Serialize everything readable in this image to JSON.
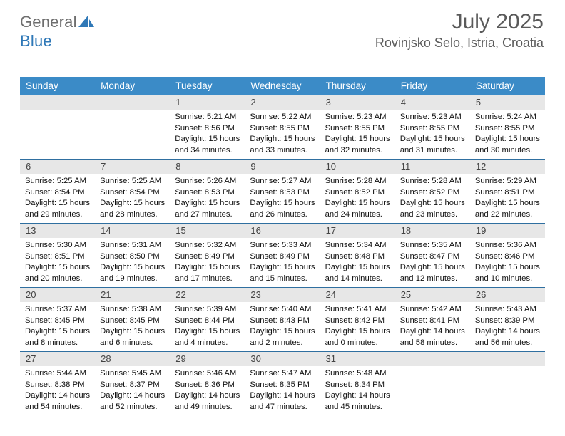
{
  "brand": {
    "part1": "General",
    "part2": "Blue"
  },
  "title": "July 2025",
  "location": "Rovinjsko Selo, Istria, Croatia",
  "headers": [
    "Sunday",
    "Monday",
    "Tuesday",
    "Wednesday",
    "Thursday",
    "Friday",
    "Saturday"
  ],
  "colors": {
    "header_bg": "#3b8bc7",
    "header_fg": "#ffffff",
    "daynum_bg": "#e7e7e7",
    "daynum_border": "#2f6fa0",
    "title_color": "#5a5a5a",
    "logo_gray": "#6e6e6e",
    "logo_blue": "#2f78b7"
  },
  "weeks": [
    [
      {
        "n": "",
        "lines": []
      },
      {
        "n": "",
        "lines": []
      },
      {
        "n": "1",
        "lines": [
          "Sunrise: 5:21 AM",
          "Sunset: 8:56 PM",
          "Daylight: 15 hours",
          "and 34 minutes."
        ]
      },
      {
        "n": "2",
        "lines": [
          "Sunrise: 5:22 AM",
          "Sunset: 8:55 PM",
          "Daylight: 15 hours",
          "and 33 minutes."
        ]
      },
      {
        "n": "3",
        "lines": [
          "Sunrise: 5:23 AM",
          "Sunset: 8:55 PM",
          "Daylight: 15 hours",
          "and 32 minutes."
        ]
      },
      {
        "n": "4",
        "lines": [
          "Sunrise: 5:23 AM",
          "Sunset: 8:55 PM",
          "Daylight: 15 hours",
          "and 31 minutes."
        ]
      },
      {
        "n": "5",
        "lines": [
          "Sunrise: 5:24 AM",
          "Sunset: 8:55 PM",
          "Daylight: 15 hours",
          "and 30 minutes."
        ]
      }
    ],
    [
      {
        "n": "6",
        "lines": [
          "Sunrise: 5:25 AM",
          "Sunset: 8:54 PM",
          "Daylight: 15 hours",
          "and 29 minutes."
        ]
      },
      {
        "n": "7",
        "lines": [
          "Sunrise: 5:25 AM",
          "Sunset: 8:54 PM",
          "Daylight: 15 hours",
          "and 28 minutes."
        ]
      },
      {
        "n": "8",
        "lines": [
          "Sunrise: 5:26 AM",
          "Sunset: 8:53 PM",
          "Daylight: 15 hours",
          "and 27 minutes."
        ]
      },
      {
        "n": "9",
        "lines": [
          "Sunrise: 5:27 AM",
          "Sunset: 8:53 PM",
          "Daylight: 15 hours",
          "and 26 minutes."
        ]
      },
      {
        "n": "10",
        "lines": [
          "Sunrise: 5:28 AM",
          "Sunset: 8:52 PM",
          "Daylight: 15 hours",
          "and 24 minutes."
        ]
      },
      {
        "n": "11",
        "lines": [
          "Sunrise: 5:28 AM",
          "Sunset: 8:52 PM",
          "Daylight: 15 hours",
          "and 23 minutes."
        ]
      },
      {
        "n": "12",
        "lines": [
          "Sunrise: 5:29 AM",
          "Sunset: 8:51 PM",
          "Daylight: 15 hours",
          "and 22 minutes."
        ]
      }
    ],
    [
      {
        "n": "13",
        "lines": [
          "Sunrise: 5:30 AM",
          "Sunset: 8:51 PM",
          "Daylight: 15 hours",
          "and 20 minutes."
        ]
      },
      {
        "n": "14",
        "lines": [
          "Sunrise: 5:31 AM",
          "Sunset: 8:50 PM",
          "Daylight: 15 hours",
          "and 19 minutes."
        ]
      },
      {
        "n": "15",
        "lines": [
          "Sunrise: 5:32 AM",
          "Sunset: 8:49 PM",
          "Daylight: 15 hours",
          "and 17 minutes."
        ]
      },
      {
        "n": "16",
        "lines": [
          "Sunrise: 5:33 AM",
          "Sunset: 8:49 PM",
          "Daylight: 15 hours",
          "and 15 minutes."
        ]
      },
      {
        "n": "17",
        "lines": [
          "Sunrise: 5:34 AM",
          "Sunset: 8:48 PM",
          "Daylight: 15 hours",
          "and 14 minutes."
        ]
      },
      {
        "n": "18",
        "lines": [
          "Sunrise: 5:35 AM",
          "Sunset: 8:47 PM",
          "Daylight: 15 hours",
          "and 12 minutes."
        ]
      },
      {
        "n": "19",
        "lines": [
          "Sunrise: 5:36 AM",
          "Sunset: 8:46 PM",
          "Daylight: 15 hours",
          "and 10 minutes."
        ]
      }
    ],
    [
      {
        "n": "20",
        "lines": [
          "Sunrise: 5:37 AM",
          "Sunset: 8:45 PM",
          "Daylight: 15 hours",
          "and 8 minutes."
        ]
      },
      {
        "n": "21",
        "lines": [
          "Sunrise: 5:38 AM",
          "Sunset: 8:45 PM",
          "Daylight: 15 hours",
          "and 6 minutes."
        ]
      },
      {
        "n": "22",
        "lines": [
          "Sunrise: 5:39 AM",
          "Sunset: 8:44 PM",
          "Daylight: 15 hours",
          "and 4 minutes."
        ]
      },
      {
        "n": "23",
        "lines": [
          "Sunrise: 5:40 AM",
          "Sunset: 8:43 PM",
          "Daylight: 15 hours",
          "and 2 minutes."
        ]
      },
      {
        "n": "24",
        "lines": [
          "Sunrise: 5:41 AM",
          "Sunset: 8:42 PM",
          "Daylight: 15 hours",
          "and 0 minutes."
        ]
      },
      {
        "n": "25",
        "lines": [
          "Sunrise: 5:42 AM",
          "Sunset: 8:41 PM",
          "Daylight: 14 hours",
          "and 58 minutes."
        ]
      },
      {
        "n": "26",
        "lines": [
          "Sunrise: 5:43 AM",
          "Sunset: 8:39 PM",
          "Daylight: 14 hours",
          "and 56 minutes."
        ]
      }
    ],
    [
      {
        "n": "27",
        "lines": [
          "Sunrise: 5:44 AM",
          "Sunset: 8:38 PM",
          "Daylight: 14 hours",
          "and 54 minutes."
        ]
      },
      {
        "n": "28",
        "lines": [
          "Sunrise: 5:45 AM",
          "Sunset: 8:37 PM",
          "Daylight: 14 hours",
          "and 52 minutes."
        ]
      },
      {
        "n": "29",
        "lines": [
          "Sunrise: 5:46 AM",
          "Sunset: 8:36 PM",
          "Daylight: 14 hours",
          "and 49 minutes."
        ]
      },
      {
        "n": "30",
        "lines": [
          "Sunrise: 5:47 AM",
          "Sunset: 8:35 PM",
          "Daylight: 14 hours",
          "and 47 minutes."
        ]
      },
      {
        "n": "31",
        "lines": [
          "Sunrise: 5:48 AM",
          "Sunset: 8:34 PM",
          "Daylight: 14 hours",
          "and 45 minutes."
        ]
      },
      {
        "n": "",
        "lines": []
      },
      {
        "n": "",
        "lines": []
      }
    ]
  ]
}
